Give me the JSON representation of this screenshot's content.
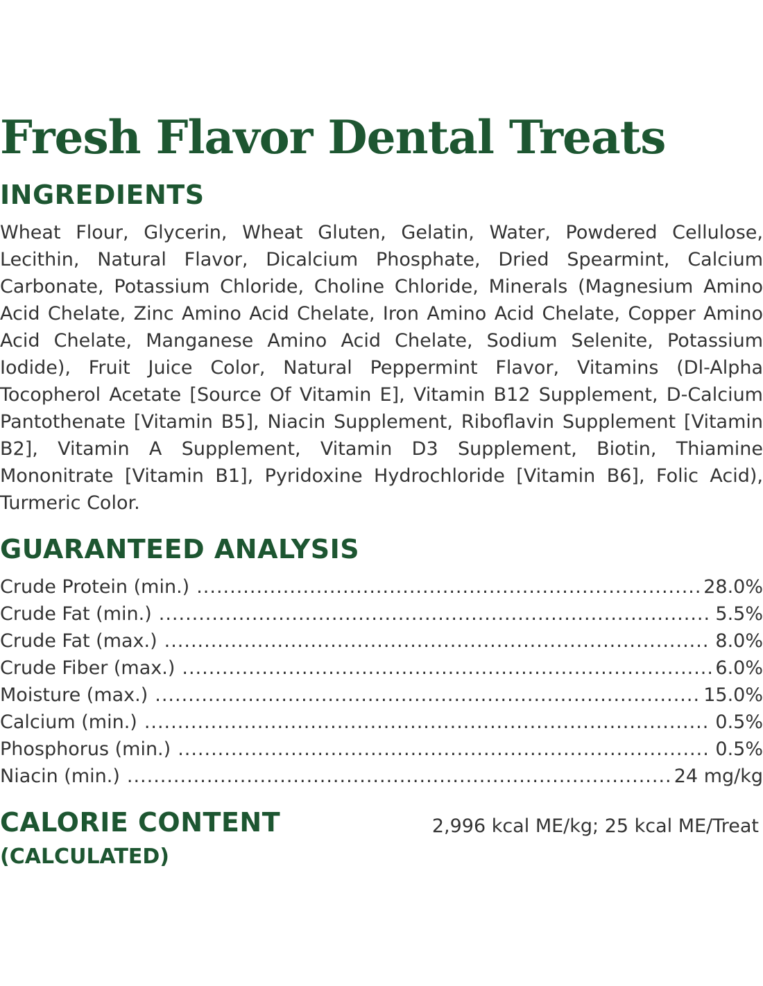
{
  "title": "Fresh Flavor Dental Treats",
  "ingredients": {
    "heading": "INGREDIENTS",
    "text": "Wheat Flour, Glycerin, Wheat Gluten, Gelatin, Water, Powdered Cellulose, Lecithin, Natural Flavor, Dicalcium Phosphate, Dried Spearmint, Calcium Carbonate, Potassium Chloride, Choline Chloride, Minerals (Magnesium Amino Acid Chelate, Zinc Amino Acid Chelate, Iron Amino Acid Chelate, Copper Amino Acid Chelate, Manganese Amino Acid Chelate, Sodium Selenite, Potassium Iodide), Fruit Juice Color, Natural Peppermint Flavor, Vitamins (Dl-Alpha Tocopherol Acetate [Source Of Vitamin E], Vitamin B12 Supplement, D-Calcium Pantothenate [Vitamin B5], Niacin Supplement, Riboflavin Supplement [Vitamin B2], Vitamin A Supplement, Vitamin D3 Supplement, Biotin, Thiamine Mononitrate [Vitamin B1], Pyridoxine Hydrochloride [Vitamin B6], Folic Acid), Turmeric Color."
  },
  "guaranteed_analysis": {
    "heading": "GUARANTEED ANALYSIS",
    "rows": [
      {
        "name": "Crude Protein (min.)",
        "value": "28.0%"
      },
      {
        "name": "Crude Fat (min.)",
        "value": "5.5%"
      },
      {
        "name": "Crude Fat (max.)",
        "value": "8.0%"
      },
      {
        "name": "Crude Fiber (max.)",
        "value": "6.0%"
      },
      {
        "name": "Moisture (max.)",
        "value": "15.0%"
      },
      {
        "name": "Calcium (min.)",
        "value": "0.5%"
      },
      {
        "name": "Phosphorus (min.)",
        "value": "0.5%"
      },
      {
        "name": "Niacin (min.)",
        "value": "24 mg/kg"
      }
    ]
  },
  "calorie_content": {
    "heading": "CALORIE CONTENT",
    "subheading": "(CALCULATED)",
    "value": "2,996 kcal ME/kg; 25 kcal ME/Treat"
  },
  "colors": {
    "heading_green": "#1d5631",
    "body_text": "#333333",
    "background": "#ffffff"
  }
}
